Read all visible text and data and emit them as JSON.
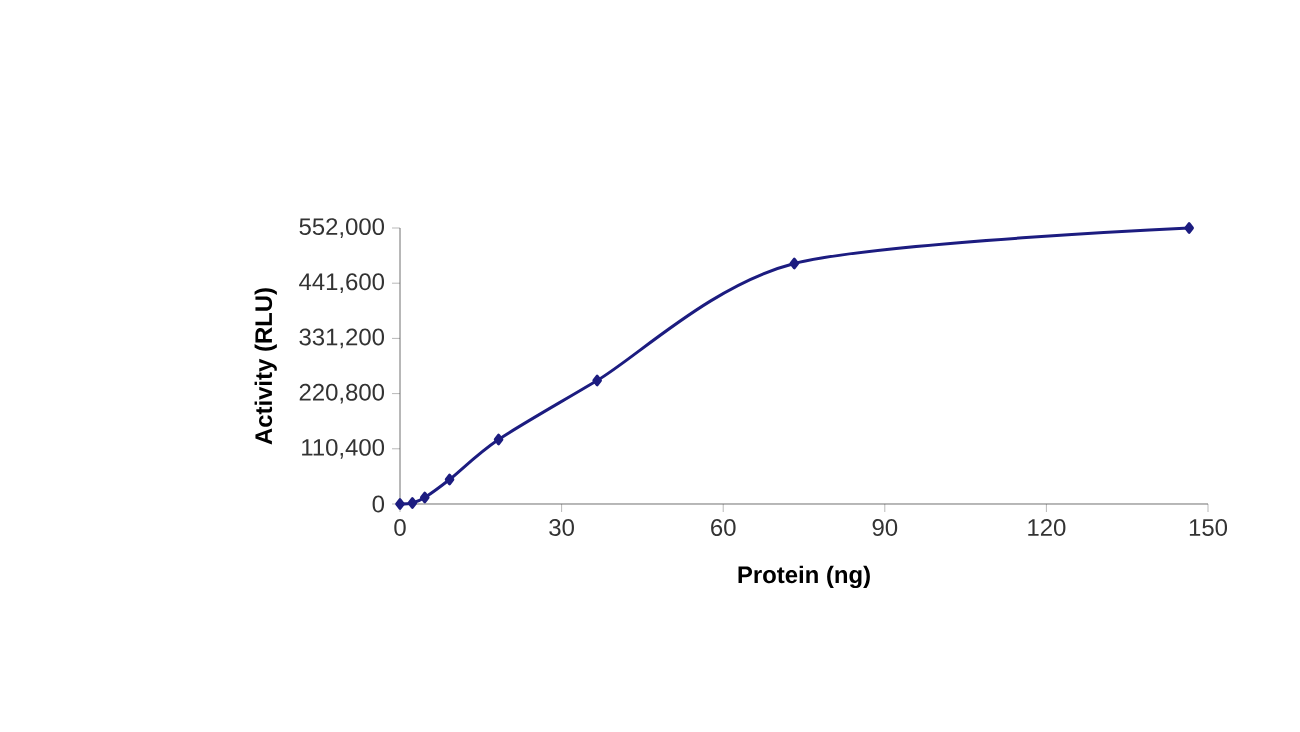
{
  "chart_data": {
    "type": "line",
    "xlabel": "Protein (ng)",
    "ylabel": "Activity (RLU)",
    "x": [
      0,
      2.3,
      4.6,
      9.2,
      18.3,
      36.6,
      73.2,
      146.5
    ],
    "series": [
      {
        "color": "#1c1c80",
        "values": [
          0,
          2000,
          13000,
          49000,
          129000,
          247000,
          481000,
          552000
        ]
      }
    ],
    "xlim": [
      0,
      150
    ],
    "ylim": [
      0,
      552000
    ],
    "xticks": [
      0,
      30,
      60,
      90,
      120,
      150
    ],
    "yticks": [
      0,
      {
        "value": 110400,
        "label": "110,400"
      },
      {
        "value": 220800,
        "label": "220,800"
      },
      {
        "value": 331200,
        "label": "331,200"
      },
      {
        "value": 441600,
        "label": "441,600"
      },
      {
        "value": 552000,
        "label": "552,000"
      }
    ],
    "marker": "diamond",
    "line_style": "solid",
    "grid": false
  }
}
